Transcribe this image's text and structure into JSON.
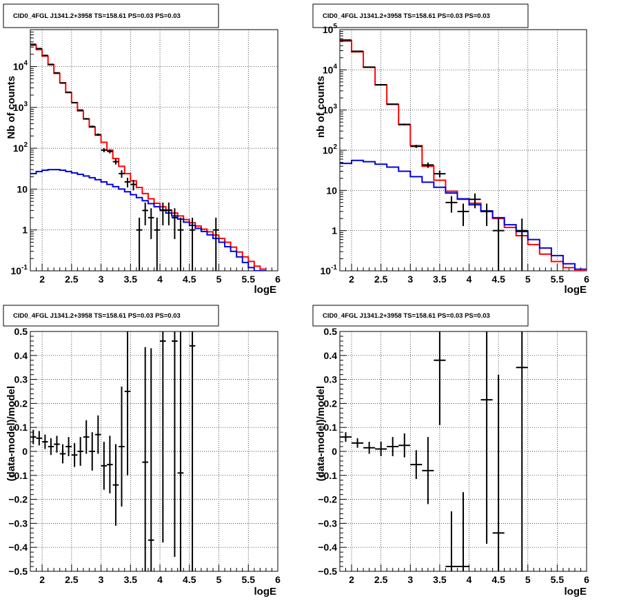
{
  "chart_data": [
    {
      "type": "line",
      "title": "CID0_4FGL J1341.2+3958 TS=158.61 PS=0.03 PS=0.03",
      "xlabel": "logE",
      "ylabel": "Nb of counts",
      "xlim": [
        1.8,
        6.0
      ],
      "ylim": [
        0.1,
        80000
      ],
      "yscale": "log",
      "grid": true,
      "xticks": [
        2,
        2.5,
        3,
        3.5,
        4,
        4.5,
        5,
        5.5,
        6
      ],
      "xtick_labels": [
        "2",
        "2.5",
        "3",
        "3.5",
        "4",
        "4.5",
        "5",
        "5.5",
        "6"
      ],
      "ytick_labels": [
        "10^-1",
        "1",
        "10",
        "10^2",
        "10^3",
        "10^4"
      ],
      "bin_edges": [
        1.8,
        1.9,
        2.0,
        2.1,
        2.2,
        2.3,
        2.4,
        2.5,
        2.6,
        2.7,
        2.8,
        2.9,
        3.0,
        3.1,
        3.2,
        3.3,
        3.4,
        3.5,
        3.6,
        3.7,
        3.8,
        3.9,
        4.0,
        4.1,
        4.2,
        4.3,
        4.4,
        4.5,
        4.6,
        4.7,
        4.8,
        4.9,
        5.0,
        5.1,
        5.2,
        5.3,
        5.4,
        5.5,
        5.6,
        5.7,
        5.8,
        5.9,
        6.0
      ],
      "series": [
        {
          "color": "#ff0000",
          "values": [
            33000,
            26000,
            18000,
            11000,
            6800,
            4000,
            2300,
            1300,
            820,
            520,
            330,
            210,
            140,
            90,
            56,
            36,
            24,
            16,
            11,
            7.8,
            5.8,
            4.5,
            3.7,
            3.1,
            2.6,
            2.2,
            1.8,
            1.5,
            1.25,
            1.05,
            0.9,
            0.75,
            0.62,
            0.5,
            0.38,
            0.29,
            0.22,
            0.17,
            0.13,
            0.11
          ]
        },
        {
          "color": "#0000dd",
          "values": [
            24,
            27,
            29,
            30,
            30,
            29,
            27,
            25,
            23,
            21,
            19,
            17,
            15,
            13,
            11.5,
            10,
            8.6,
            7.3,
            6.2,
            5.2,
            4.4,
            3.7,
            3.1,
            2.6,
            2.2,
            1.85,
            1.55,
            1.3,
            1.1,
            0.92,
            0.76,
            0.62,
            0.5,
            0.39,
            0.3,
            0.22,
            0.16,
            0.12,
            0.1,
            0.1
          ]
        },
        {
          "type": "errorbar",
          "color": "#000000",
          "x": [
            1.85,
            1.95,
            2.05,
            2.15,
            2.25,
            2.35,
            2.45,
            2.55,
            2.65,
            2.75,
            2.85,
            2.95,
            3.05,
            3.15,
            3.25,
            3.35,
            3.45,
            3.55,
            3.65,
            3.75,
            3.85,
            3.95,
            4.05,
            4.15,
            4.25,
            4.35,
            4.55,
            4.95
          ],
          "y": [
            35000,
            27500,
            18700,
            11300,
            7000,
            3950,
            2350,
            1310,
            860,
            525,
            340,
            215,
            90,
            84,
            47,
            24,
            15,
            13,
            1,
            3,
            2,
            1,
            3,
            3,
            2,
            1,
            1,
            1
          ],
          "yerr": [
            190,
            170,
            140,
            110,
            85,
            65,
            50,
            38,
            30,
            24,
            19,
            15,
            10,
            9,
            7,
            5,
            4,
            3.7,
            1,
            1.7,
            1.4,
            1,
            1.7,
            1.7,
            1.4,
            1,
            1,
            1
          ]
        }
      ]
    },
    {
      "type": "line",
      "title": "CID0_4FGL J1341.2+3958 TS=158.61 PS=0.03 PS=0.03",
      "xlabel": "logE",
      "ylabel": "nb of counts",
      "xlim": [
        1.8,
        6.0
      ],
      "ylim": [
        0.1,
        100000
      ],
      "yscale": "log",
      "grid": true,
      "xticks": [
        2,
        2.5,
        3,
        3.5,
        4,
        4.5,
        5,
        5.5,
        6
      ],
      "xtick_labels": [
        "2",
        "2.5",
        "3",
        "3.5",
        "4",
        "4.5",
        "5",
        "5.5",
        "6"
      ],
      "ytick_labels": [
        "10^-1",
        "1",
        "10",
        "10^2",
        "10^3",
        "10^4",
        "10^5"
      ],
      "bin_edges": [
        1.8,
        2.0,
        2.2,
        2.4,
        2.6,
        2.8,
        3.0,
        3.2,
        3.4,
        3.6,
        3.8,
        4.0,
        4.2,
        4.4,
        4.6,
        4.8,
        5.0,
        5.2,
        5.4,
        5.6,
        5.8,
        6.0
      ],
      "series": [
        {
          "color": "#ff0000",
          "values": [
            52000,
            28000,
            11500,
            4200,
            1380,
            430,
            130,
            40,
            18,
            9.5,
            6,
            4.8,
            3,
            2,
            1.2,
            0.75,
            0.45,
            0.26,
            0.17,
            0.12,
            0.1
          ]
        },
        {
          "color": "#0000dd",
          "values": [
            47,
            56,
            52,
            45,
            38,
            30,
            22,
            16,
            12,
            8.6,
            6.2,
            4.4,
            3.1,
            2.1,
            1.4,
            0.95,
            0.6,
            0.37,
            0.24,
            0.15,
            0.11
          ]
        },
        {
          "type": "errorbar",
          "color": "#000000",
          "x": [
            1.9,
            2.1,
            2.3,
            2.5,
            2.7,
            2.9,
            3.1,
            3.3,
            3.5,
            3.7,
            3.9,
            4.1,
            4.3,
            4.5,
            4.9
          ],
          "y": [
            55000,
            29000,
            11700,
            4250,
            1400,
            440,
            125,
            43,
            26,
            5,
            3,
            6,
            3,
            1,
            1
          ],
          "yerr": [
            235,
            170,
            108,
            65,
            37,
            21,
            11,
            6.6,
            5,
            2.2,
            1.7,
            2.4,
            1.7,
            1,
            1
          ]
        }
      ]
    },
    {
      "type": "scatter",
      "title": "CID0_4FGL J1341.2+3958 TS=158.61 PS=0.03 PS=0.03",
      "xlabel": "logE",
      "ylabel": "(data-model)/model",
      "xlim": [
        1.8,
        6.0
      ],
      "ylim": [
        -0.5,
        0.5
      ],
      "grid": true,
      "xticks": [
        2,
        2.5,
        3,
        3.5,
        4,
        4.5,
        5,
        5.5,
        6
      ],
      "xtick_labels": [
        "2",
        "2.5",
        "3",
        "3.5",
        "4",
        "4.5",
        "5",
        "5.5",
        "6"
      ],
      "yticks": [
        -0.5,
        -0.4,
        -0.3,
        -0.2,
        -0.1,
        0,
        0.1,
        0.2,
        0.3,
        0.4,
        0.5
      ],
      "ytick_labels": [
        "−0.5",
        "−0.4",
        "−0.3",
        "−0.2",
        "−0.1",
        "0",
        "0.1",
        "0.2",
        "0.3",
        "0.4",
        "0.5"
      ],
      "x": [
        1.85,
        1.95,
        2.05,
        2.15,
        2.25,
        2.35,
        2.45,
        2.55,
        2.65,
        2.75,
        2.85,
        2.95,
        3.05,
        3.15,
        3.25,
        3.35,
        3.45,
        3.75,
        3.85,
        4.05,
        4.25,
        4.35,
        4.55
      ],
      "y": [
        0.06,
        0.055,
        0.04,
        0.02,
        0.03,
        -0.01,
        0.02,
        -0.015,
        0.0,
        0.06,
        0.0,
        0.07,
        -0.06,
        -0.055,
        -0.14,
        0.02,
        0.25,
        -0.045,
        -0.37,
        0.46,
        0.46,
        -0.09,
        0.44
      ],
      "yerr": [
        0.03,
        0.03,
        0.03,
        0.035,
        0.035,
        0.04,
        0.04,
        0.05,
        0.06,
        0.07,
        0.08,
        0.08,
        0.1,
        0.12,
        0.17,
        0.25,
        0.35,
        0.48,
        0.8,
        0.84,
        0.9,
        0.9,
        1.0
      ],
      "xerr": 0.05
    },
    {
      "type": "scatter",
      "title": "CID0_4FGL J1341.2+3958 TS=158.61 PS=0.03 PS=0.03",
      "xlabel": "logE",
      "ylabel": "(data-model)/model",
      "xlim": [
        1.8,
        6.0
      ],
      "ylim": [
        -0.5,
        0.5
      ],
      "grid": true,
      "xticks": [
        2,
        2.5,
        3,
        3.5,
        4,
        4.5,
        5,
        5.5,
        6
      ],
      "xtick_labels": [
        "2",
        "2.5",
        "3",
        "3.5",
        "4",
        "4.5",
        "5",
        "5.5",
        "6"
      ],
      "yticks": [
        -0.5,
        -0.4,
        -0.3,
        -0.2,
        -0.1,
        0,
        0.1,
        0.2,
        0.3,
        0.4,
        0.5
      ],
      "ytick_labels": [
        "−0.5",
        "−0.4",
        "−0.3",
        "−0.2",
        "−0.1",
        "0",
        "0.1",
        "0.2",
        "0.3",
        "0.4",
        "0.5"
      ],
      "x": [
        1.9,
        2.1,
        2.3,
        2.5,
        2.7,
        2.9,
        3.1,
        3.3,
        3.5,
        3.7,
        3.9,
        4.3,
        4.5,
        4.9
      ],
      "y": [
        0.06,
        0.035,
        0.015,
        0.01,
        0.02,
        0.025,
        -0.055,
        -0.08,
        0.38,
        -0.48,
        -0.48,
        0.215,
        -0.34,
        0.35
      ],
      "yerr": [
        0.02,
        0.02,
        0.025,
        0.03,
        0.04,
        0.05,
        0.06,
        0.14,
        0.27,
        0.23,
        0.31,
        0.6,
        0.66,
        1.0
      ],
      "xerr": 0.1
    }
  ]
}
